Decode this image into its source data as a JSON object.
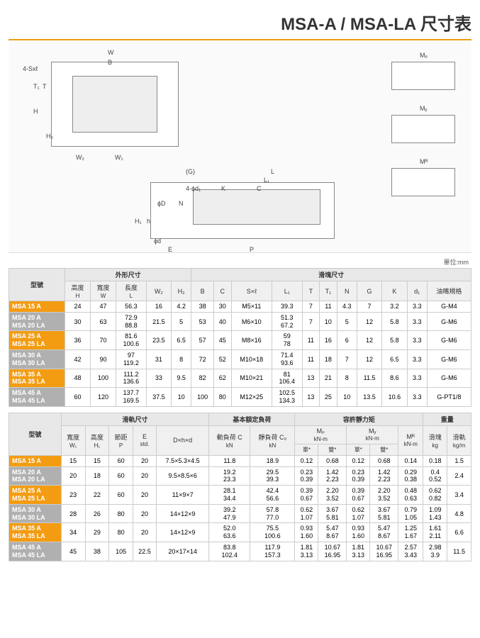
{
  "title": "MSA-A / MSA-LA 尺寸表",
  "unit": "單位:mm",
  "diagram_labels": [
    "W",
    "B",
    "4-Sxℓ",
    "T₁",
    "T",
    "H",
    "H₂",
    "W₂",
    "W₁",
    "(G)",
    "L",
    "L₁",
    "C",
    "4-ϕd₁",
    "K",
    "ϕD",
    "N",
    "h",
    "H₁",
    "ϕd",
    "E",
    "P",
    "Mₚ",
    "Mᵧ",
    "Mᴿ"
  ],
  "table1": {
    "group_headers": [
      "型號",
      "外形尺寸",
      "滑塊尺寸"
    ],
    "cols": [
      "高度\nH",
      "寬度\nW",
      "長度\nL",
      "W₂",
      "H₂",
      "B",
      "C",
      "S×ℓ",
      "L₁",
      "T",
      "T₁",
      "N",
      "G",
      "K",
      "d₁",
      "油嘴規格"
    ],
    "rows": [
      {
        "m": [
          "MSA 15 A"
        ],
        "c": "o",
        "v": [
          "24",
          "47",
          "56.3",
          "16",
          "4.2",
          "38",
          "30",
          "M5×11",
          "39.3",
          "7",
          "11",
          "4.3",
          "7",
          "3.2",
          "3.3",
          "G-M4"
        ]
      },
      {
        "m": [
          "MSA 20 A",
          "MSA 20 LA"
        ],
        "c": "g",
        "v": [
          "30",
          "63",
          "72.9\n88.8",
          "21.5",
          "5",
          "53",
          "40",
          "M6×10",
          "51.3\n67.2",
          "7",
          "10",
          "5",
          "12",
          "5.8",
          "3.3",
          "G-M6"
        ]
      },
      {
        "m": [
          "MSA 25 A",
          "MSA 25 LA"
        ],
        "c": "o",
        "v": [
          "36",
          "70",
          "81.6\n100.6",
          "23.5",
          "6.5",
          "57",
          "45",
          "M8×16",
          "59\n78",
          "11",
          "16",
          "6",
          "12",
          "5.8",
          "3.3",
          "G-M6"
        ]
      },
      {
        "m": [
          "MSA 30 A",
          "MSA 30 LA"
        ],
        "c": "g",
        "v": [
          "42",
          "90",
          "97\n119.2",
          "31",
          "8",
          "72",
          "52",
          "M10×18",
          "71.4\n93.6",
          "11",
          "18",
          "7",
          "12",
          "6.5",
          "3.3",
          "G-M6"
        ]
      },
      {
        "m": [
          "MSA 35 A",
          "MSA 35 LA"
        ],
        "c": "o",
        "v": [
          "48",
          "100",
          "111.2\n136.6",
          "33",
          "9.5",
          "82",
          "62",
          "M10×21",
          "81\n106.4",
          "13",
          "21",
          "8",
          "11.5",
          "8.6",
          "3.3",
          "G-M6"
        ]
      },
      {
        "m": [
          "MSA 45 A",
          "MSA 45 LA"
        ],
        "c": "g",
        "v": [
          "60",
          "120",
          "137.7\n169.5",
          "37.5",
          "10",
          "100",
          "80",
          "M12×25",
          "102.5\n134.3",
          "13",
          "25",
          "10",
          "13.5",
          "10.6",
          "3.3",
          "G-PT1/8"
        ]
      }
    ]
  },
  "table2": {
    "group_headers": [
      "型號",
      "滑軌尺寸",
      "基本額定負荷",
      "容許靜力矩",
      "重量"
    ],
    "cols": [
      "寬度\nW₁",
      "高度\nH₁",
      "節距\nP",
      "E\nstd.",
      "D×h×d",
      "動負荷 C\nkN",
      "靜負荷 C₀\nkN"
    ],
    "moment_cols": [
      "Mₚ\nkN-m",
      "Mᵧ\nkN-m",
      "Mᴿ\nkN-m"
    ],
    "sub_headers": [
      "單*",
      "雙*",
      "單*",
      "雙*"
    ],
    "weight_cols": [
      "滑塊\nkg",
      "滑軌\nkg/m"
    ],
    "rows": [
      {
        "m": [
          "MSA 15 A"
        ],
        "c": "o",
        "v": [
          "15",
          "15",
          "60",
          "20",
          "7.5×5.3×4.5",
          "11.8",
          "18.9",
          "0.12",
          "0.68",
          "0.12",
          "0.68",
          "0.14",
          "0.18",
          "1.5"
        ]
      },
      {
        "m": [
          "MSA 20 A",
          "MSA 20 LA"
        ],
        "c": "g",
        "v": [
          "20",
          "18",
          "60",
          "20",
          "9.5×8.5×6",
          "19.2\n23.3",
          "29.5\n39.3",
          "0.23\n0.39",
          "1.42\n2.23",
          "0.23\n0.39",
          "1.42\n2.23",
          "0.29\n0.38",
          "0.4\n0.52",
          "2.4"
        ]
      },
      {
        "m": [
          "MSA 25 A",
          "MSA 25 LA"
        ],
        "c": "o",
        "v": [
          "23",
          "22",
          "60",
          "20",
          "11×9×7",
          "28.1\n34.4",
          "42.4\n56.6",
          "0.39\n0.67",
          "2.20\n3.52",
          "0.39\n0.67",
          "2.20\n3.52",
          "0.48\n0.63",
          "0.62\n0.82",
          "3.4"
        ]
      },
      {
        "m": [
          "MSA 30 A",
          "MSA 30 LA"
        ],
        "c": "g",
        "v": [
          "28",
          "26",
          "80",
          "20",
          "14×12×9",
          "39.2\n47.9",
          "57.8\n77.0",
          "0.62\n1.07",
          "3.67\n5.81",
          "0.62\n1.07",
          "3.67\n5.81",
          "0.79\n1.05",
          "1.09\n1.43",
          "4.8"
        ]
      },
      {
        "m": [
          "MSA 35 A",
          "MSA 35 LA"
        ],
        "c": "o",
        "v": [
          "34",
          "29",
          "80",
          "20",
          "14×12×9",
          "52.0\n63.6",
          "75.5\n100.6",
          "0.93\n1.60",
          "5.47\n8.67",
          "0.93\n1.60",
          "5.47\n8.67",
          "1.25\n1.67",
          "1.61\n2.11",
          "6.6"
        ]
      },
      {
        "m": [
          "MSA 45 A",
          "MSA 45 LA"
        ],
        "c": "g",
        "v": [
          "45",
          "38",
          "105",
          "22.5",
          "20×17×14",
          "83.8\n102.4",
          "117.9\n157.3",
          "1.81\n3.13",
          "10.67\n16.95",
          "1.81\n3.13",
          "10.67\n16.95",
          "2.57\n3.43",
          "2.98\n3.9",
          "11.5"
        ]
      }
    ]
  },
  "colors": {
    "accent": "#f39c12",
    "grey": "#b0b0b0"
  }
}
